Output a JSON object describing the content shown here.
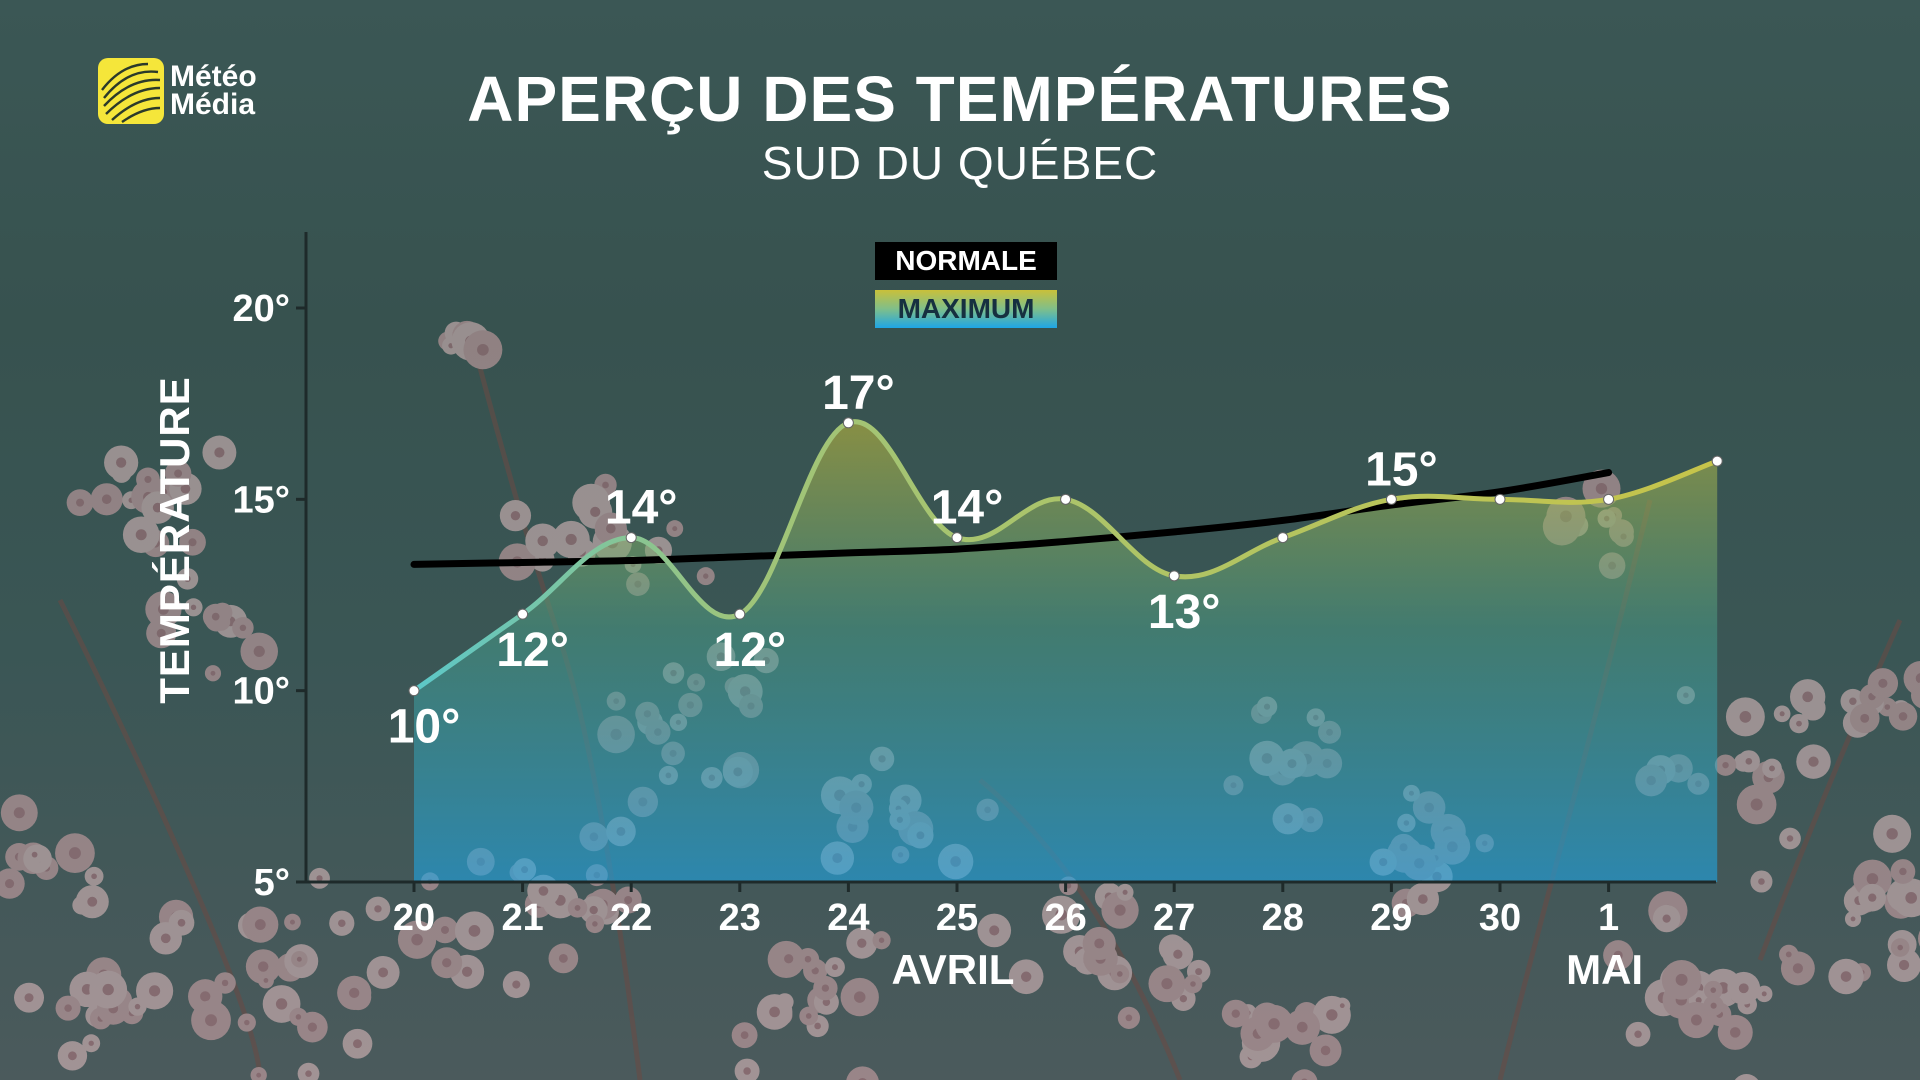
{
  "brand": {
    "line1": "Météo",
    "line2": "Média",
    "accent": "#f5e63a"
  },
  "title": "APERÇU DES TEMPÉRATURES",
  "subtitle": "SUD DU QUÉBEC",
  "legend": {
    "normal": "NORMALE",
    "maximum": "MAXIMUM"
  },
  "months": [
    {
      "label": "AVRIL",
      "at_day": "25"
    },
    {
      "label": "MAI",
      "at_day": "1"
    }
  ],
  "chart_data": {
    "type": "line",
    "title": "APERÇU DES TEMPÉRATURES",
    "subtitle": "SUD DU QUÉBEC",
    "ylabel": "TEMPÉRATURE",
    "xlabel": "",
    "categories": [
      "20",
      "21",
      "22",
      "23",
      "24",
      "25",
      "26",
      "27",
      "28",
      "29",
      "30",
      "1",
      ""
    ],
    "ylim": [
      5,
      20
    ],
    "yticks": [
      5,
      10,
      15,
      20
    ],
    "ytick_labels": [
      "5°",
      "10°",
      "15°",
      "20°"
    ],
    "series": [
      {
        "name": "MAXIMUM",
        "values": [
          10,
          12,
          14,
          12,
          17,
          14,
          15,
          13,
          14,
          15,
          15,
          15,
          16
        ],
        "labels": [
          "10°",
          "12°",
          "14°",
          "12°",
          "17°",
          "14°",
          "",
          "13°",
          "",
          "15°",
          "",
          "",
          ""
        ],
        "label_pos": [
          "below",
          "below",
          "above",
          "below",
          "above",
          "above",
          "",
          "below",
          "",
          "above",
          "",
          "",
          ""
        ],
        "fill": "area"
      },
      {
        "name": "NORMALE",
        "values": [
          13.3,
          13.35,
          13.4,
          13.5,
          13.6,
          13.7,
          13.9,
          14.15,
          14.45,
          14.85,
          15.2,
          15.7,
          null
        ]
      }
    ],
    "colors": {
      "normale": "#000000",
      "max_top": "#c9c03a",
      "max_bottom": "#1ea6e6"
    },
    "legend_position": "top-center",
    "grid": false
  }
}
